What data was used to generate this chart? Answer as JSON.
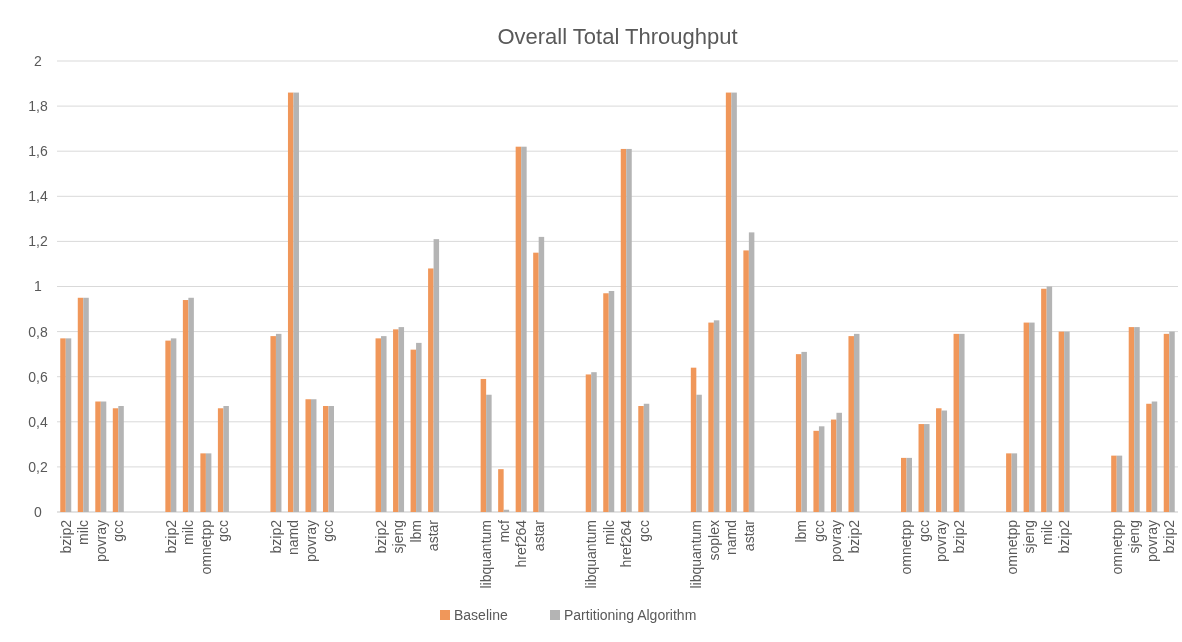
{
  "chart_data": {
    "type": "bar",
    "title": "Overall Total Throughput",
    "categories": [
      "bzip2",
      "milc",
      "povray",
      "gcc",
      null,
      null,
      "bzip2",
      "milc",
      "omnetpp",
      "gcc",
      null,
      null,
      "bzip2",
      "namd",
      "povray",
      "gcc",
      null,
      null,
      "bzip2",
      "sjeng",
      "lbm",
      "astar",
      null,
      null,
      "libquantum",
      "mcf",
      "href264",
      "astar",
      null,
      null,
      "libquantum",
      "milc",
      "href264",
      "gcc",
      null,
      null,
      "libquantum",
      "soplex",
      "namd",
      "astar",
      null,
      null,
      "lbm",
      "gcc",
      "povray",
      "bzip2",
      null,
      null,
      "omnetpp",
      "gcc",
      "povray",
      "bzip2",
      null,
      null,
      "omnetpp",
      "sjeng",
      "milc",
      "bzip2",
      null,
      null,
      "omnetpp",
      "sjeng",
      "povray",
      "bzip2"
    ],
    "series": [
      {
        "name": "Baseline",
        "color": "#f0975a",
        "values": [
          0.77,
          0.95,
          0.49,
          0.46,
          null,
          null,
          0.76,
          0.94,
          0.26,
          0.46,
          null,
          null,
          0.78,
          1.86,
          0.5,
          0.47,
          null,
          null,
          0.77,
          0.81,
          0.72,
          1.08,
          null,
          null,
          0.59,
          0.19,
          1.62,
          1.15,
          null,
          null,
          0.61,
          0.97,
          1.61,
          0.47,
          null,
          null,
          0.64,
          0.84,
          1.86,
          1.16,
          null,
          null,
          0.7,
          0.36,
          0.41,
          0.78,
          null,
          null,
          0.24,
          0.39,
          0.46,
          0.79,
          null,
          null,
          0.26,
          0.84,
          0.99,
          0.8,
          null,
          null,
          0.25,
          0.82,
          0.48,
          0.79
        ]
      },
      {
        "name": "Partitioning Algorithm",
        "color": "#b4b4b4",
        "values": [
          0.77,
          0.95,
          0.49,
          0.47,
          null,
          null,
          0.77,
          0.95,
          0.26,
          0.47,
          null,
          null,
          0.79,
          1.86,
          0.5,
          0.47,
          null,
          null,
          0.78,
          0.82,
          0.75,
          1.21,
          null,
          null,
          0.52,
          0.01,
          1.62,
          1.22,
          null,
          null,
          0.62,
          0.98,
          1.61,
          0.48,
          null,
          null,
          0.52,
          0.85,
          1.86,
          1.24,
          null,
          null,
          0.71,
          0.38,
          0.44,
          0.79,
          null,
          null,
          0.24,
          0.39,
          0.45,
          0.79,
          null,
          null,
          0.26,
          0.84,
          1.0,
          0.8,
          null,
          null,
          0.25,
          0.82,
          0.49,
          0.8
        ]
      }
    ],
    "ylim": [
      0,
      2
    ],
    "yticks": [
      0,
      {
        "value": 0.2,
        "label": "0,2"
      },
      {
        "value": 0.4,
        "label": "0,4"
      },
      {
        "value": 0.6,
        "label": "0,6"
      },
      {
        "value": 0.8,
        "label": "0,8"
      },
      1,
      {
        "value": 1.2,
        "label": "1,2"
      },
      {
        "value": 1.4,
        "label": "1,4"
      },
      {
        "value": 1.6,
        "label": "1,6"
      },
      {
        "value": 1.8,
        "label": "1,8"
      },
      2
    ],
    "grid": "y",
    "legend": "bottom"
  }
}
